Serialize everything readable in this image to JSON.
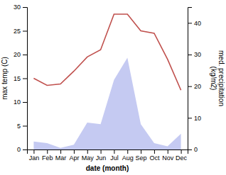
{
  "chart_data": {
    "type": "line",
    "categories": [
      "Jan",
      "Feb",
      "Mar",
      "Apr",
      "May",
      "Jun",
      "Jul",
      "Aug",
      "Sep",
      "Oct",
      "Nov",
      "Dec"
    ],
    "series": [
      {
        "type": "area",
        "axis": "y2",
        "color": "#c5caf2",
        "values": [
          2.5,
          2.0,
          0.5,
          1.5,
          8.5,
          8.0,
          22.0,
          29.0,
          8.0,
          2.0,
          1.0,
          5.0
        ]
      },
      {
        "type": "line",
        "axis": "y",
        "color": "#c0504d",
        "values": [
          15.0,
          13.5,
          13.8,
          16.5,
          19.5,
          21.0,
          28.5,
          28.5,
          25.0,
          24.5,
          19.0,
          12.5
        ]
      }
    ],
    "xlabel": "date (month)",
    "ylabel": "max temp (C)",
    "y2label": "med. precipitation\n(kg/m2)",
    "ylim": [
      0,
      30
    ],
    "yticks": [
      0,
      5,
      10,
      15,
      20,
      25,
      30
    ],
    "y2lim": [
      0,
      45
    ],
    "y2ticks": [
      0,
      10,
      20,
      30,
      40
    ],
    "grid": false
  }
}
